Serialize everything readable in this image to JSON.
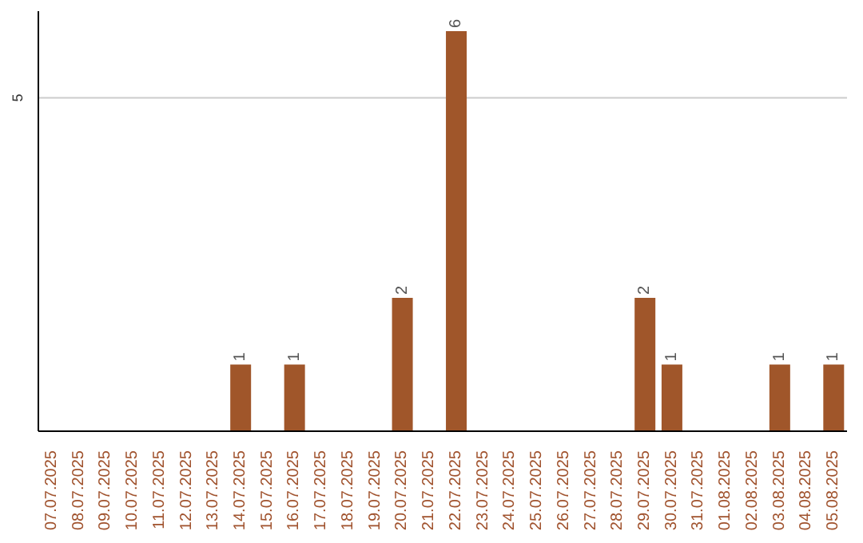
{
  "chart_data": {
    "type": "bar",
    "categories": [
      "07.07.2025",
      "08.07.2025",
      "09.07.2025",
      "10.07.2025",
      "11.07.2025",
      "12.07.2025",
      "13.07.2025",
      "14.07.2025",
      "15.07.2025",
      "16.07.2025",
      "17.07.2025",
      "18.07.2025",
      "19.07.2025",
      "20.07.2025",
      "21.07.2025",
      "22.07.2025",
      "23.07.2025",
      "24.07.2025",
      "25.07.2025",
      "26.07.2025",
      "27.07.2025",
      "28.07.2025",
      "29.07.2025",
      "30.07.2025",
      "31.07.2025",
      "01.08.2025",
      "02.08.2025",
      "03.08.2025",
      "04.08.2025",
      "05.08.2025"
    ],
    "values": [
      0,
      0,
      0,
      0,
      0,
      0,
      0,
      1,
      0,
      1,
      0,
      0,
      0,
      2,
      0,
      6,
      0,
      0,
      0,
      0,
      0,
      0,
      2,
      1,
      0,
      0,
      0,
      1,
      0,
      1
    ],
    "value_labels": [
      null,
      null,
      null,
      null,
      null,
      null,
      null,
      "1",
      null,
      "1",
      null,
      null,
      null,
      "2",
      null,
      "6",
      null,
      null,
      null,
      null,
      null,
      null,
      "2",
      "1",
      null,
      null,
      null,
      "1",
      null,
      "1"
    ],
    "color": "#a0562a",
    "ylim": [
      0,
      6.3
    ],
    "yticks": [
      5
    ],
    "grid": "y"
  }
}
